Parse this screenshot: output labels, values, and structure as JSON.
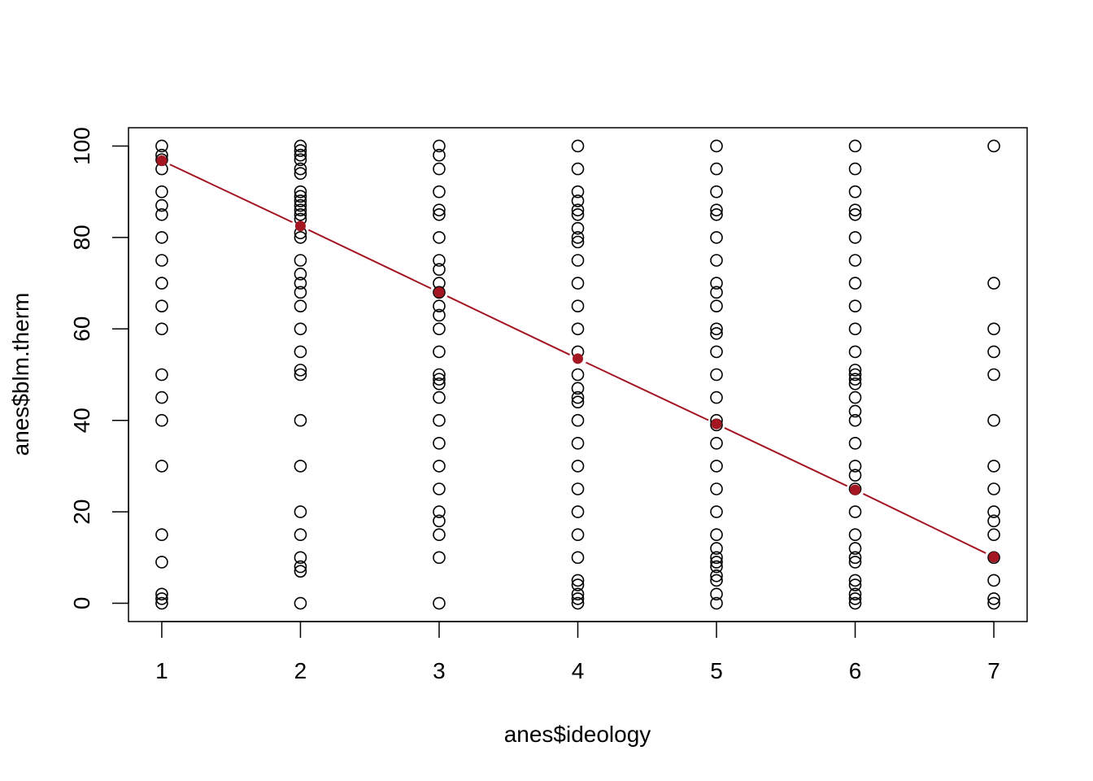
{
  "chart_data": {
    "type": "scatter",
    "title": "",
    "xlabel": "anes$ideology",
    "ylabel": "anes$blm.therm",
    "xlim": [
      0.76,
      7.24
    ],
    "ylim": [
      -4,
      104
    ],
    "x_ticks": [
      1,
      2,
      3,
      4,
      5,
      6,
      7
    ],
    "y_ticks": [
      0,
      20,
      40,
      60,
      80,
      100
    ],
    "grid": false,
    "point_color": "#000000",
    "line_color": "#a31622",
    "scatter_points": [
      {
        "x": 1,
        "ys": [
          100,
          98,
          97,
          95,
          90,
          87,
          85,
          80,
          75,
          70,
          65,
          60,
          50,
          45,
          40,
          30,
          15,
          9,
          2,
          1,
          0
        ]
      },
      {
        "x": 2,
        "ys": [
          100,
          99,
          98,
          97,
          95,
          94,
          90,
          89,
          88,
          87,
          86,
          85,
          84,
          81,
          80,
          75,
          72,
          70,
          68,
          65,
          60,
          55,
          51,
          50,
          40,
          30,
          20,
          15,
          10,
          8,
          7,
          0
        ]
      },
      {
        "x": 3,
        "ys": [
          100,
          98,
          95,
          90,
          86,
          85,
          80,
          75,
          73,
          70,
          68,
          65,
          63,
          60,
          55,
          50,
          49,
          48,
          45,
          40,
          35,
          30,
          25,
          20,
          18,
          15,
          10,
          0
        ]
      },
      {
        "x": 4,
        "ys": [
          100,
          95,
          90,
          88,
          86,
          85,
          82,
          80,
          79,
          75,
          70,
          65,
          60,
          55,
          50,
          47,
          45,
          44,
          40,
          35,
          30,
          25,
          20,
          15,
          10,
          5,
          4,
          2,
          1,
          0
        ]
      },
      {
        "x": 5,
        "ys": [
          100,
          95,
          90,
          86,
          85,
          80,
          75,
          70,
          68,
          65,
          60,
          59,
          55,
          50,
          45,
          40,
          39,
          35,
          30,
          25,
          20,
          15,
          12,
          10,
          9,
          8,
          6,
          5,
          2,
          0
        ]
      },
      {
        "x": 6,
        "ys": [
          100,
          95,
          90,
          86,
          85,
          80,
          75,
          70,
          65,
          60,
          55,
          51,
          50,
          49,
          48,
          45,
          42,
          40,
          35,
          30,
          28,
          25,
          20,
          15,
          12,
          10,
          9,
          5,
          4,
          2,
          1,
          0
        ]
      },
      {
        "x": 7,
        "ys": [
          100,
          70,
          60,
          55,
          50,
          40,
          30,
          25,
          20,
          18,
          15,
          10,
          5,
          1,
          0
        ]
      }
    ],
    "means": {
      "name": "",
      "x": [
        1,
        2,
        3,
        4,
        5,
        6,
        7
      ],
      "y": [
        96.8,
        82.5,
        68.0,
        53.5,
        39.2,
        24.8,
        10.1
      ]
    }
  }
}
